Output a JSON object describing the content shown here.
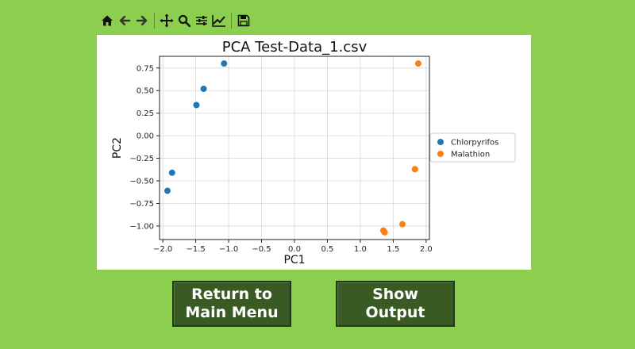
{
  "toolbar": {
    "tools": [
      "home-icon",
      "back-arrow-icon",
      "forward-arrow-icon",
      "pan-icon",
      "zoom-icon",
      "configure-subplots-icon",
      "edit-axis-icon",
      "save-icon"
    ]
  },
  "buttons": {
    "return_label": "Return to\nMain Menu",
    "show_label": "Show\nOutput"
  },
  "chart_data": {
    "type": "scatter",
    "title": "PCA Test-Data_1.csv",
    "xlabel": "PC1",
    "ylabel": "PC2",
    "xlim": [
      -2.05,
      2.05
    ],
    "ylim": [
      -1.15,
      0.88
    ],
    "xticks": [
      -2.0,
      -1.5,
      -1.0,
      -0.5,
      0.0,
      0.5,
      1.0,
      1.5,
      2.0
    ],
    "xtick_labels": [
      "−2.0",
      "−1.5",
      "−1.0",
      "−0.5",
      "0.0",
      "0.5",
      "1.0",
      "1.5",
      "2.0"
    ],
    "yticks": [
      0.75,
      0.5,
      0.25,
      0.0,
      -0.25,
      -0.5,
      -0.75,
      -1.0
    ],
    "ytick_labels": [
      "0.75",
      "0.50",
      "0.25",
      "0.00",
      "−0.25",
      "−0.50",
      "−0.75",
      "−1.00"
    ],
    "grid": true,
    "legend_position": "right",
    "series": [
      {
        "name": "Chlorpyrifos",
        "color": "#1f77b4",
        "points": [
          [
            -1.07,
            0.8
          ],
          [
            -1.38,
            0.52
          ],
          [
            -1.49,
            0.34
          ],
          [
            -1.86,
            -0.41
          ],
          [
            -1.93,
            -0.61
          ]
        ]
      },
      {
        "name": "Malathion",
        "color": "#ff7f0e",
        "points": [
          [
            1.88,
            0.8
          ],
          [
            1.83,
            -0.37
          ],
          [
            1.64,
            -0.98
          ],
          [
            1.35,
            -1.05
          ],
          [
            1.37,
            -1.07
          ]
        ]
      }
    ]
  }
}
